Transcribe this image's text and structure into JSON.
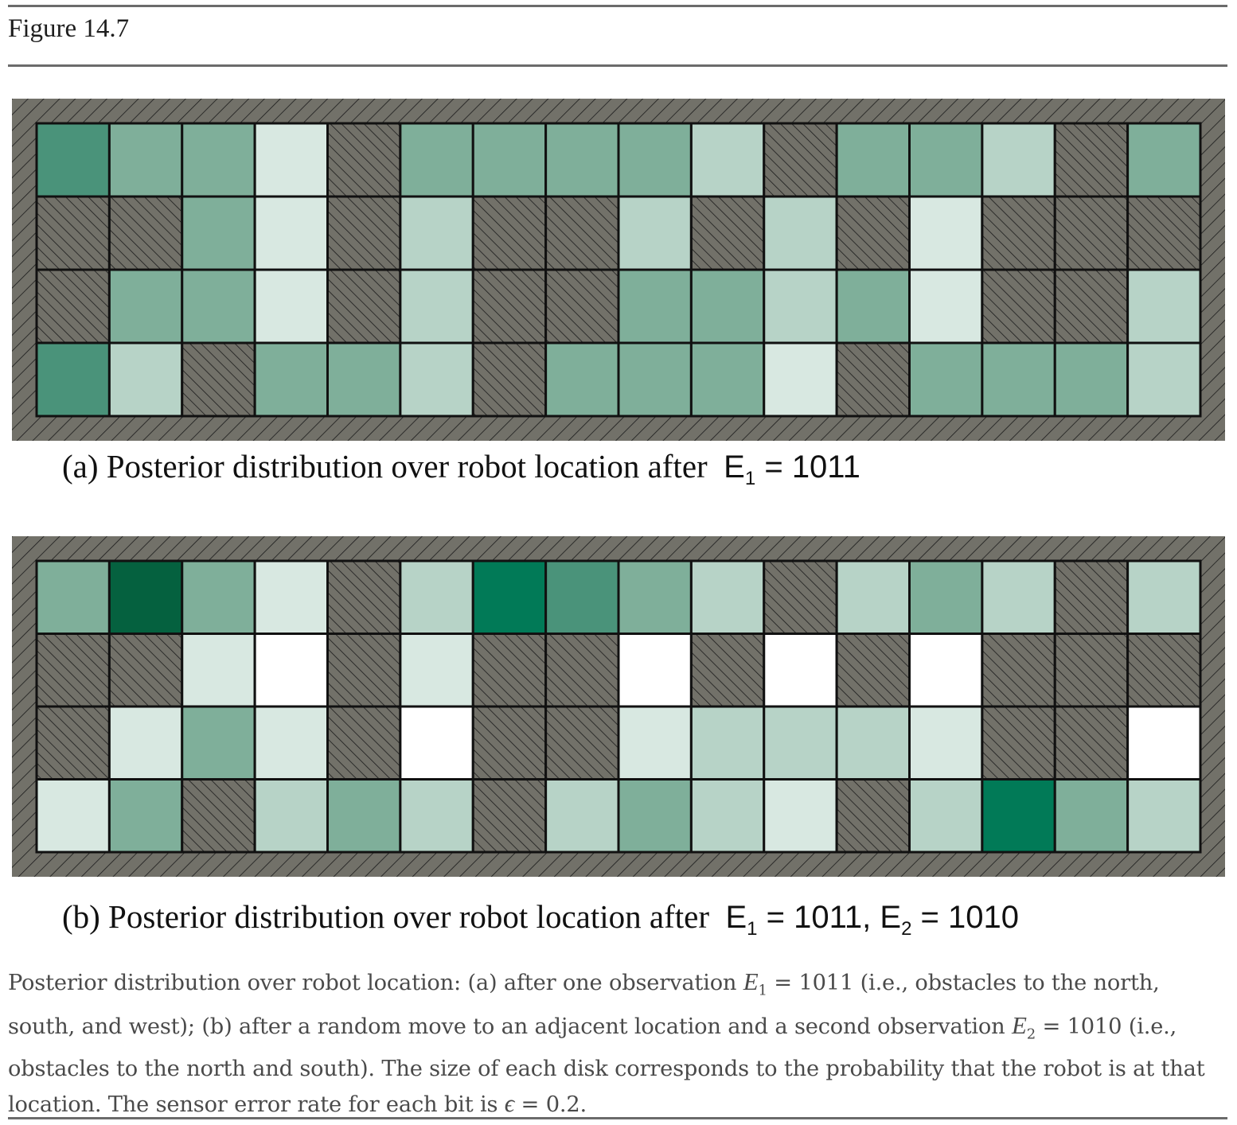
{
  "figure": {
    "label": "Figure 14.7"
  },
  "colors": {
    "wall": "#727169",
    "hatch": "#1b1b1b",
    "grid_line": "#111111",
    "shade_levels": [
      "#ffffff",
      "#d8e8e1",
      "#b7d3c7",
      "#7faf9a",
      "#4a937a",
      "#017a57",
      "#05613f"
    ]
  },
  "panels": [
    {
      "id": "a",
      "caption_prefix": "(a) Posterior distribution over robot location after",
      "caption_math": [
        {
          "var": "E",
          "sub": "1",
          "value": "1011"
        }
      ],
      "grid_legend": "Cell values: -1 = obstacle (hatched), 0..6 = probability shade level",
      "cells": [
        [
          4,
          3,
          3,
          1,
          -1,
          3,
          3,
          3,
          3,
          2,
          -1,
          3,
          3,
          2,
          -1,
          3
        ],
        [
          -1,
          -1,
          3,
          1,
          -1,
          2,
          -1,
          -1,
          2,
          -1,
          2,
          -1,
          1,
          -1,
          -1,
          -1
        ],
        [
          -1,
          3,
          3,
          1,
          -1,
          2,
          -1,
          -1,
          3,
          3,
          2,
          3,
          1,
          -1,
          -1,
          2
        ],
        [
          4,
          2,
          -1,
          3,
          3,
          2,
          -1,
          3,
          3,
          3,
          1,
          -1,
          3,
          3,
          3,
          2
        ]
      ]
    },
    {
      "id": "b",
      "caption_prefix": "(b) Posterior distribution over robot location after",
      "caption_math": [
        {
          "var": "E",
          "sub": "1",
          "value": "1011"
        },
        {
          "var": "E",
          "sub": "2",
          "value": "1010"
        }
      ],
      "cells": [
        [
          3,
          6,
          3,
          1,
          -1,
          2,
          5,
          4,
          3,
          2,
          -1,
          2,
          3,
          2,
          -1,
          2
        ],
        [
          -1,
          -1,
          1,
          0,
          -1,
          1,
          -1,
          -1,
          0,
          -1,
          0,
          -1,
          0,
          -1,
          -1,
          -1
        ],
        [
          -1,
          1,
          3,
          1,
          -1,
          0,
          -1,
          -1,
          1,
          2,
          2,
          2,
          1,
          -1,
          -1,
          0
        ],
        [
          1,
          3,
          -1,
          2,
          3,
          2,
          -1,
          2,
          3,
          2,
          1,
          -1,
          2,
          5,
          3,
          2
        ]
      ]
    }
  ],
  "caption": {
    "part1": "Posterior distribution over robot location: (a) after one observation ",
    "e1_var": "E",
    "e1_sub": "1",
    "e1_eq": " = 1011 (i.e., obstacles to the north, south, and west); (b) after a random move to an adjacent location and a second observation ",
    "e2_var": "E",
    "e2_sub": "2",
    "e2_eq": " = 1010 (i.e., obstacles to the north and south). The size of each disk corresponds to the probability that the robot is at that location. The sensor error rate for each bit is ",
    "eps": "ϵ",
    "eps_eq": " = 0.2."
  }
}
